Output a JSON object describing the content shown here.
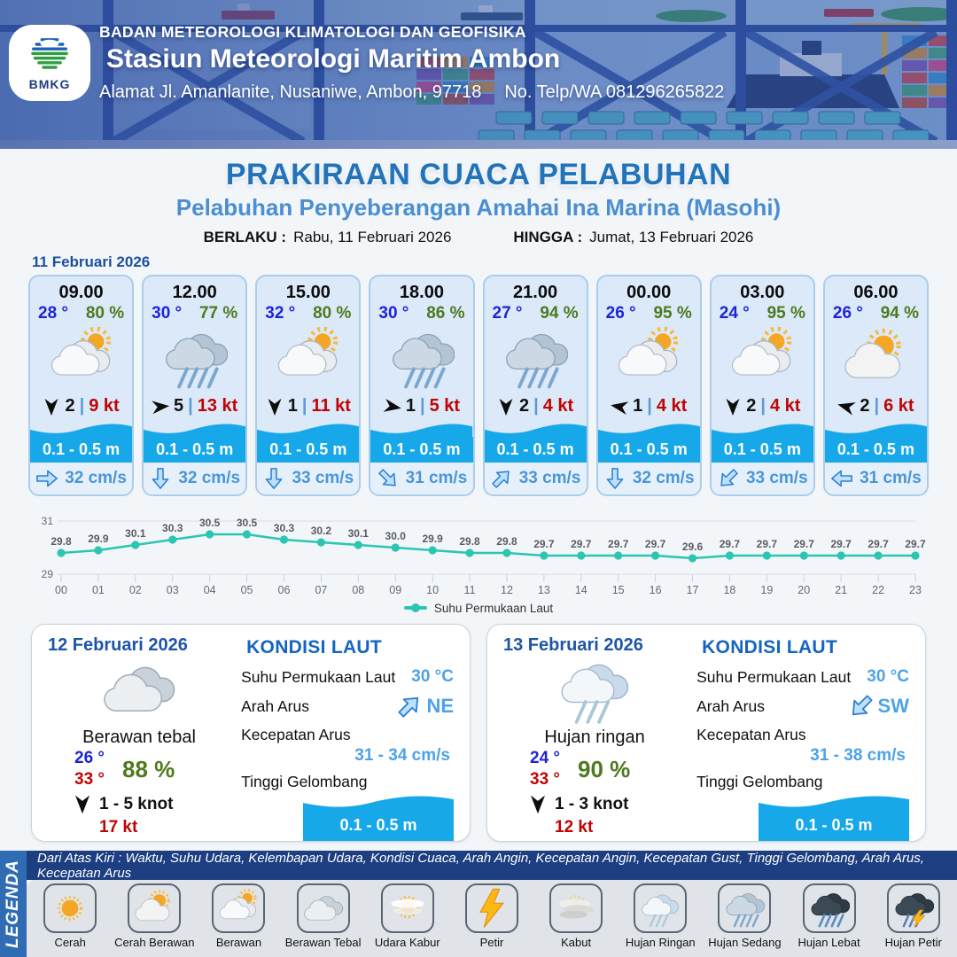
{
  "header": {
    "org": "BADAN METEOROLOGI KLIMATOLOGI DAN GEOFISIKA",
    "station": "Stasiun Meteorologi Maritim Ambon",
    "address": "Alamat Jl. Amanlanite, Nusaniwe, Ambon, 97718",
    "phone": "No. Telp/WA  081296265822",
    "logo_text": "BMKG"
  },
  "title": {
    "main": "PRAKIRAAN CUACA PELABUHAN",
    "sub": "Pelabuhan Penyeberangan Amahai Ina Marina (Masohi)"
  },
  "validity": {
    "berlaku_label": "BERLAKU :",
    "berlaku_value": "Rabu, 11 Februari 2026",
    "hingga_label": "HINGGA :",
    "hingga_value": "Jumat, 13 Februari 2026"
  },
  "forecast_date": "11 Februari 2026",
  "ui": {
    "separator": "|"
  },
  "forecast_cards": [
    {
      "time": "09.00",
      "temp": "28 °",
      "humidity": "80 %",
      "icon": "berawan",
      "wind_dir_deg": 0,
      "wind": "2",
      "wind_speed": "9 kt",
      "wave": "0.1 - 0.5 m",
      "current_dir": "E",
      "current": "32 cm/s"
    },
    {
      "time": "12.00",
      "temp": "30 °",
      "humidity": "77 %",
      "icon": "hujan-sedang",
      "wind_dir_deg": -95,
      "wind": "5",
      "wind_speed": "13 kt",
      "wave": "0.1 - 0.5 m",
      "current_dir": "S",
      "current": "32 cm/s"
    },
    {
      "time": "15.00",
      "temp": "32 °",
      "humidity": "80 %",
      "icon": "berawan",
      "wind_dir_deg": 0,
      "wind": "1",
      "wind_speed": "11 kt",
      "wave": "0.1 - 0.5 m",
      "current_dir": "S",
      "current": "33 cm/s"
    },
    {
      "time": "18.00",
      "temp": "30 °",
      "humidity": "86 %",
      "icon": "hujan-sedang",
      "wind_dir_deg": -80,
      "wind": "1",
      "wind_speed": "5 kt",
      "wave": "0.1 - 0.5 m",
      "current_dir": "SE",
      "current": "31 cm/s"
    },
    {
      "time": "21.00",
      "temp": "27 °",
      "humidity": "94 %",
      "icon": "hujan-sedang",
      "wind_dir_deg": 0,
      "wind": "2",
      "wind_speed": "4 kt",
      "wave": "0.1 - 0.5 m",
      "current_dir": "NE",
      "current": "33 cm/s"
    },
    {
      "time": "00.00",
      "temp": "26 °",
      "humidity": "95 %",
      "icon": "berawan",
      "wind_dir_deg": 100,
      "wind": "1",
      "wind_speed": "4 kt",
      "wave": "0.1 - 0.5 m",
      "current_dir": "S",
      "current": "32 cm/s"
    },
    {
      "time": "03.00",
      "temp": "24 °",
      "humidity": "95 %",
      "icon": "berawan",
      "wind_dir_deg": 0,
      "wind": "2",
      "wind_speed": "4 kt",
      "wave": "0.1 - 0.5 m",
      "current_dir": "SW",
      "current": "33 cm/s"
    },
    {
      "time": "06.00",
      "temp": "26 °",
      "humidity": "94 %",
      "icon": "cerah-berawan",
      "wind_dir_deg": 105,
      "wind": "2",
      "wind_speed": "6 kt",
      "wave": "0.1 - 0.5 m",
      "current_dir": "W",
      "current": "31 cm/s"
    }
  ],
  "chart_data": {
    "type": "line",
    "x": [
      "00",
      "01",
      "02",
      "03",
      "04",
      "05",
      "06",
      "07",
      "08",
      "09",
      "10",
      "11",
      "12",
      "13",
      "14",
      "15",
      "16",
      "17",
      "18",
      "19",
      "20",
      "21",
      "22",
      "23"
    ],
    "series": [
      {
        "name": "Suhu Permukaan Laut",
        "values": [
          29.8,
          29.9,
          30.1,
          30.3,
          30.5,
          30.5,
          30.3,
          30.2,
          30.1,
          30.0,
          29.9,
          29.8,
          29.8,
          29.7,
          29.7,
          29.7,
          29.7,
          29.6,
          29.7,
          29.7,
          29.7,
          29.7,
          29.7,
          29.7
        ]
      }
    ],
    "ylim": [
      29,
      31
    ],
    "yticks": [
      29,
      31
    ],
    "grid": true,
    "legend_position": "bottom",
    "line_color": "#2cc5b2"
  },
  "daily_cards": [
    {
      "date": "12 Februari 2026",
      "icon": "berawan-tebal",
      "condition": "Berawan tebal",
      "temp_min": "26 °",
      "temp_max": "33 °",
      "humidity": "88 %",
      "wind_range": "1  - 5 knot",
      "gust": "17 kt",
      "sea": {
        "title": "KONDISI LAUT",
        "sst_label": "Suhu Permukaan Laut",
        "sst": "30 °C",
        "current_dir_label": "Arah Arus",
        "current_dir": "NE",
        "current_speed_label": "Kecepatan Arus",
        "current_speed": "31 - 34 cm/s",
        "wave_label": "Tinggi Gelombang",
        "wave": "0.1 - 0.5 m"
      }
    },
    {
      "date": "13 Februari 2026",
      "icon": "hujan-ringan",
      "condition": "Hujan ringan",
      "temp_min": "24 °",
      "temp_max": "33 °",
      "humidity": "90 %",
      "wind_range": "1  - 3 knot",
      "gust": "12 kt",
      "sea": {
        "title": "KONDISI LAUT",
        "sst_label": "Suhu Permukaan Laut",
        "sst": "30 °C",
        "current_dir_label": "Arah Arus",
        "current_dir": "SW",
        "current_speed_label": "Kecepatan Arus",
        "current_speed": "31 - 38 cm/s",
        "wave_label": "Tinggi Gelombang",
        "wave": "0.1 - 0.5 m"
      }
    }
  ],
  "legend": {
    "side_label": "LEGENDA",
    "note": "Dari Atas Kiri : Waktu, Suhu Udara, Kelembapan Udara, Kondisi Cuaca, Arah Angin, Kecepatan Angin, Kecepatan Gust, Tinggi Gelombang, Arah Arus, Kecepatan Arus",
    "items": [
      {
        "label": "Cerah",
        "icon": "cerah"
      },
      {
        "label": "Cerah Berawan",
        "icon": "cerah-berawan"
      },
      {
        "label": "Berawan",
        "icon": "berawan"
      },
      {
        "label": "Berawan Tebal",
        "icon": "berawan-tebal"
      },
      {
        "label": "Udara Kabur",
        "icon": "udara-kabur"
      },
      {
        "label": "Petir",
        "icon": "petir"
      },
      {
        "label": "Kabut",
        "icon": "kabut"
      },
      {
        "label": "Hujan Ringan",
        "icon": "hujan-ringan"
      },
      {
        "label": "Hujan Sedang",
        "icon": "hujan-sedang"
      },
      {
        "label": "Hujan Lebat",
        "icon": "hujan-lebat"
      },
      {
        "label": "Hujan Petir",
        "icon": "hujan-petir"
      }
    ]
  },
  "colors": {
    "accent_blue": "#2273b9",
    "light_blue": "#4b8ed1",
    "wave_blue": "#17a8ea",
    "temp_blue": "#1d24d8",
    "humidity_green": "#4d7a1f",
    "speed_red": "#c00404",
    "sea_value_blue": "#4da3e8",
    "legend_navy": "#1d3e80",
    "legend_blue": "#2f6cb4",
    "chart_teal": "#2cc5b2"
  }
}
